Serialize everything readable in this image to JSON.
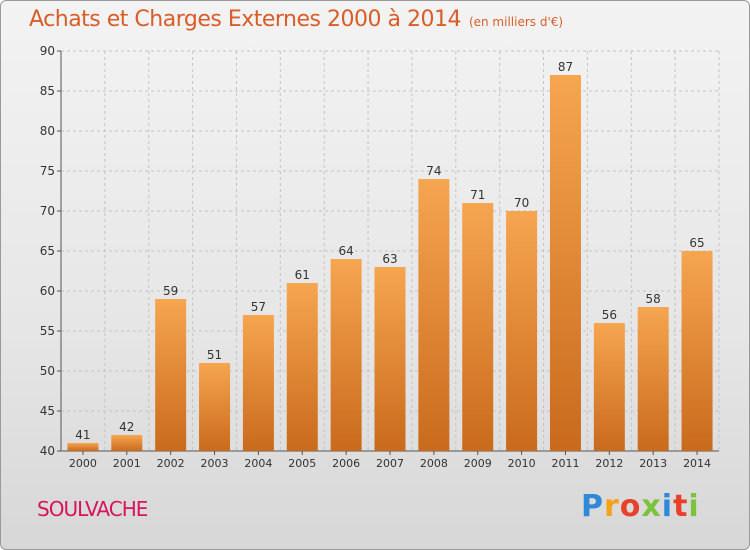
{
  "header": {
    "title": "Achats et Charges Externes 2000 à 2014",
    "subtitle": "(en milliers d'€)"
  },
  "footer": {
    "place": "SOULVACHE",
    "brand": "Proxiti"
  },
  "colors": {
    "title": "#d85d28",
    "place": "#d8145c",
    "bar_light": "#f6a550",
    "bar_dark": "#c96a1c",
    "grid": "#c4c4c4"
  },
  "chart_data": {
    "type": "bar",
    "categories": [
      "2000",
      "2001",
      "2002",
      "2003",
      "2004",
      "2005",
      "2006",
      "2007",
      "2008",
      "2009",
      "2010",
      "2011",
      "2012",
      "2013",
      "2014"
    ],
    "values": [
      41,
      42,
      59,
      51,
      57,
      61,
      64,
      63,
      74,
      71,
      70,
      87,
      56,
      58,
      65
    ],
    "title": "Achats et Charges Externes 2000 à 2014",
    "ylim": [
      40,
      90
    ],
    "yticks": [
      40,
      45,
      50,
      55,
      60,
      65,
      70,
      75,
      80,
      85,
      90
    ],
    "grid": true,
    "legend": "none"
  }
}
